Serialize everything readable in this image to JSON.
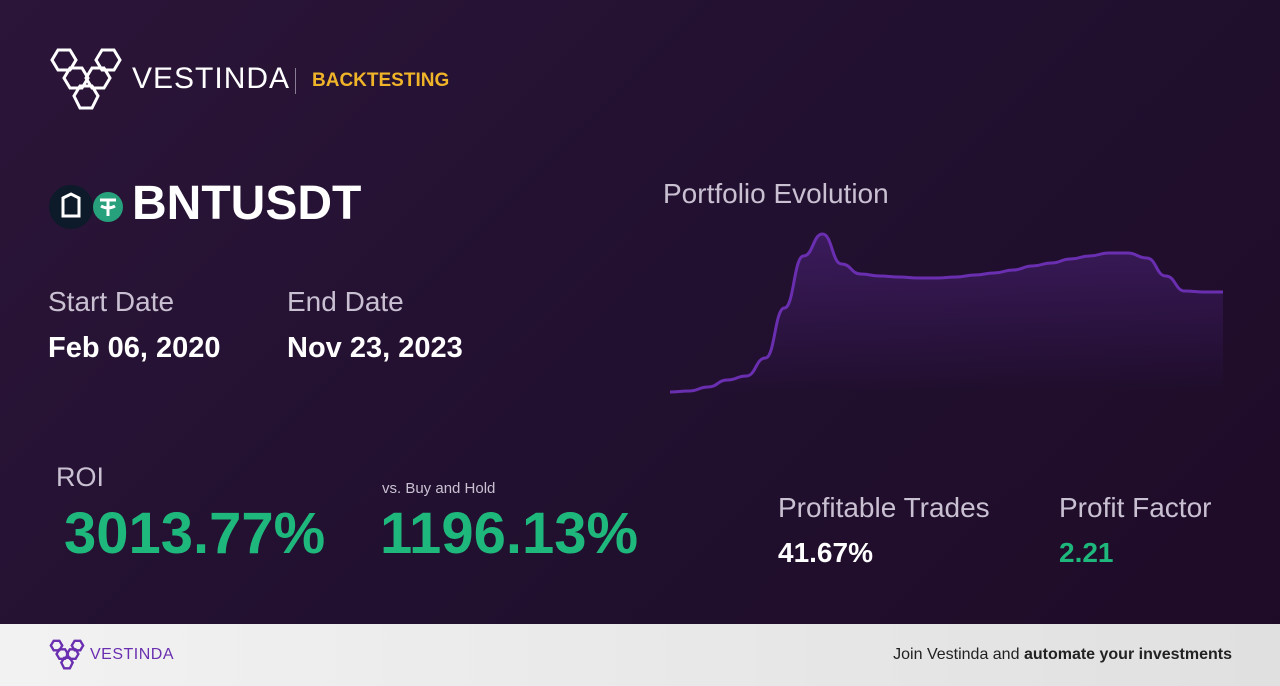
{
  "header": {
    "brand": "VESTINDA",
    "section": "BACKTESTING"
  },
  "pair": "BNTUSDT",
  "dates": {
    "start_label": "Start Date",
    "start": "Feb 06, 2020",
    "end_label": "End Date",
    "end": "Nov 23, 2023"
  },
  "chart_data": {
    "type": "line",
    "title": "Portfolio Evolution",
    "color": "#6a2fb0",
    "values": [
      8,
      9,
      13,
      20,
      24,
      42,
      92,
      144,
      166,
      136,
      126,
      124,
      123,
      122,
      122,
      123,
      125,
      127,
      130,
      134,
      137,
      141,
      144,
      147,
      147,
      142,
      124,
      109,
      108,
      108
    ]
  },
  "stats": {
    "roi_label": "ROI",
    "roi": "3013.77%",
    "vs_label": "vs. Buy and Hold",
    "vs": "1196.13%",
    "profitable_label": "Profitable Trades",
    "profitable": "41.67%",
    "pf_label": "Profit Factor",
    "pf": "2.21"
  },
  "footer": {
    "brand": "VESTINDA",
    "cta_prefix": "Join Vestinda and",
    "cta_bold": "automate your investments"
  }
}
